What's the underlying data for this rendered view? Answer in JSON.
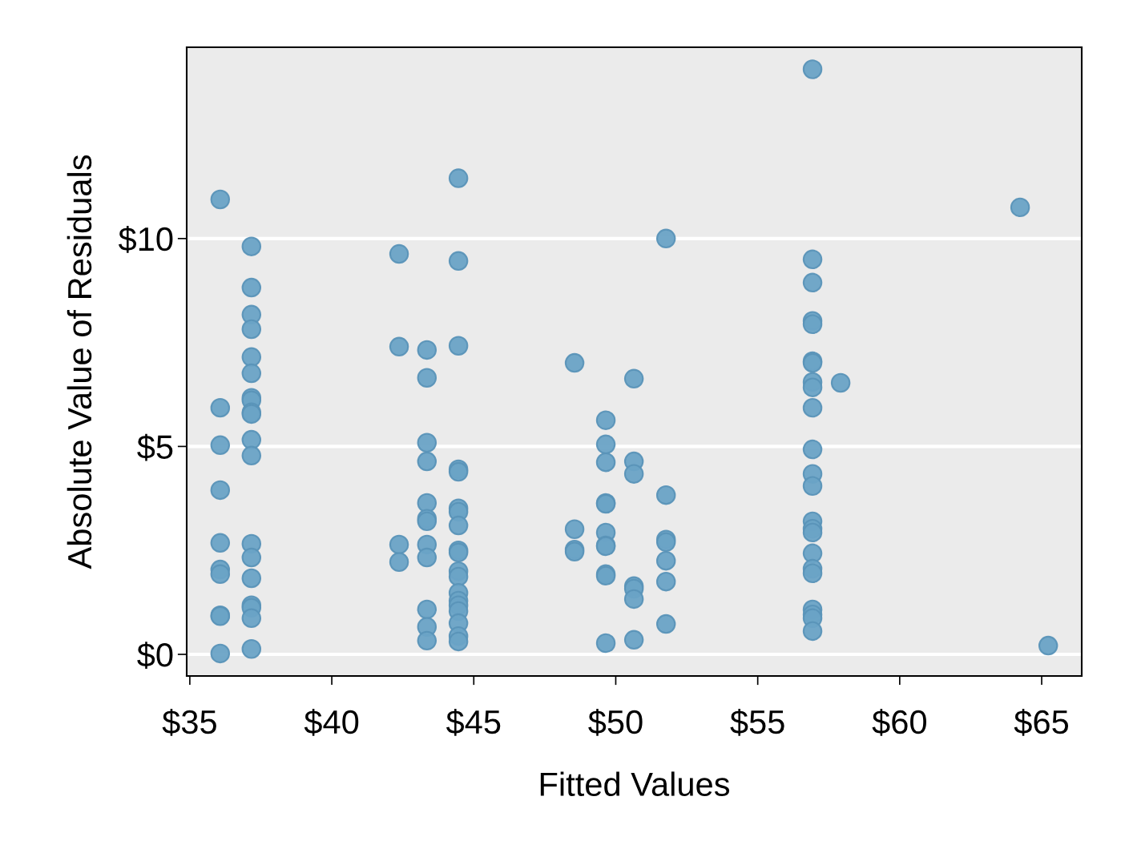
{
  "chart_data": {
    "type": "scatter",
    "xlabel": "Fitted Values",
    "ylabel": "Absolute Value of Residuals",
    "xlim": [
      34.89,
      66.41
    ],
    "ylim": [
      -0.52,
      14.6
    ],
    "xticks": [
      {
        "value": 35,
        "label": "$35"
      },
      {
        "value": 40,
        "label": "$40"
      },
      {
        "value": 45,
        "label": "$45"
      },
      {
        "value": 50,
        "label": "$50"
      },
      {
        "value": 55,
        "label": "$55"
      },
      {
        "value": 60,
        "label": "$60"
      },
      {
        "value": 65,
        "label": "$65"
      }
    ],
    "yticks": [
      {
        "value": 0,
        "label": "$0"
      },
      {
        "value": 5,
        "label": "$5"
      },
      {
        "value": 10,
        "label": "$10"
      }
    ],
    "grid": "y",
    "marker": "circle",
    "series": [
      {
        "color": "#6aa3c6",
        "x": [
          36.07,
          36.07,
          36.07,
          36.07,
          36.07,
          36.07,
          36.07,
          36.07,
          36.07,
          36.07,
          37.17,
          37.17,
          37.17,
          37.17,
          37.17,
          37.17,
          37.17,
          37.17,
          37.17,
          37.17,
          37.17,
          37.17,
          37.17,
          37.17,
          37.17,
          37.17,
          37.17,
          37.17,
          37.17,
          42.37,
          42.37,
          42.37,
          42.37,
          43.35,
          43.35,
          43.35,
          43.35,
          43.35,
          43.35,
          43.35,
          43.35,
          43.35,
          43.35,
          43.35,
          43.35,
          44.46,
          44.46,
          44.46,
          44.46,
          44.46,
          44.46,
          44.46,
          44.46,
          44.46,
          44.46,
          44.46,
          44.46,
          44.46,
          44.46,
          44.46,
          44.46,
          44.46,
          44.46,
          44.46,
          48.55,
          48.55,
          48.55,
          48.55,
          49.65,
          49.65,
          49.65,
          49.65,
          49.65,
          49.65,
          49.65,
          49.65,
          49.65,
          49.65,
          49.65,
          50.64,
          50.64,
          50.64,
          50.64,
          50.64,
          50.64,
          50.64,
          51.77,
          51.77,
          51.77,
          51.77,
          51.77,
          51.77,
          51.77,
          56.93,
          56.93,
          56.93,
          56.93,
          56.93,
          56.93,
          56.93,
          56.93,
          56.93,
          56.93,
          56.93,
          56.93,
          56.93,
          56.93,
          56.93,
          56.93,
          56.93,
          56.93,
          56.93,
          56.93,
          56.93,
          56.93,
          56.93,
          57.92,
          64.24,
          65.23
        ],
        "values": [
          10.94,
          5.93,
          5.03,
          3.95,
          2.68,
          2.04,
          1.93,
          0.94,
          0.92,
          0.02,
          9.81,
          8.82,
          8.17,
          7.82,
          7.15,
          6.76,
          6.17,
          6.11,
          5.82,
          5.78,
          5.16,
          4.78,
          2.66,
          2.33,
          1.83,
          1.18,
          1.12,
          0.87,
          0.13,
          9.63,
          7.4,
          2.64,
          2.22,
          7.32,
          6.65,
          5.09,
          4.64,
          3.64,
          3.26,
          3.2,
          2.64,
          2.33,
          1.08,
          0.66,
          0.33,
          11.45,
          9.46,
          7.42,
          4.45,
          4.39,
          3.51,
          3.43,
          3.1,
          2.5,
          2.45,
          2.0,
          1.87,
          1.48,
          1.29,
          1.18,
          1.04,
          0.75,
          0.44,
          0.31,
          7.01,
          3.01,
          2.52,
          2.47,
          5.63,
          5.05,
          4.62,
          3.64,
          3.62,
          2.93,
          2.62,
          2.6,
          1.93,
          1.89,
          0.27,
          6.63,
          4.64,
          4.34,
          1.64,
          1.58,
          1.33,
          0.35,
          10.0,
          3.83,
          2.76,
          2.7,
          2.25,
          1.75,
          0.73,
          14.07,
          9.5,
          8.94,
          8.02,
          7.94,
          7.05,
          7.01,
          6.55,
          6.42,
          5.93,
          4.93,
          4.34,
          4.05,
          3.2,
          3.02,
          2.93,
          2.43,
          2.06,
          1.95,
          1.08,
          0.96,
          0.87,
          0.56,
          6.53,
          10.75,
          0.21
        ]
      }
    ]
  }
}
